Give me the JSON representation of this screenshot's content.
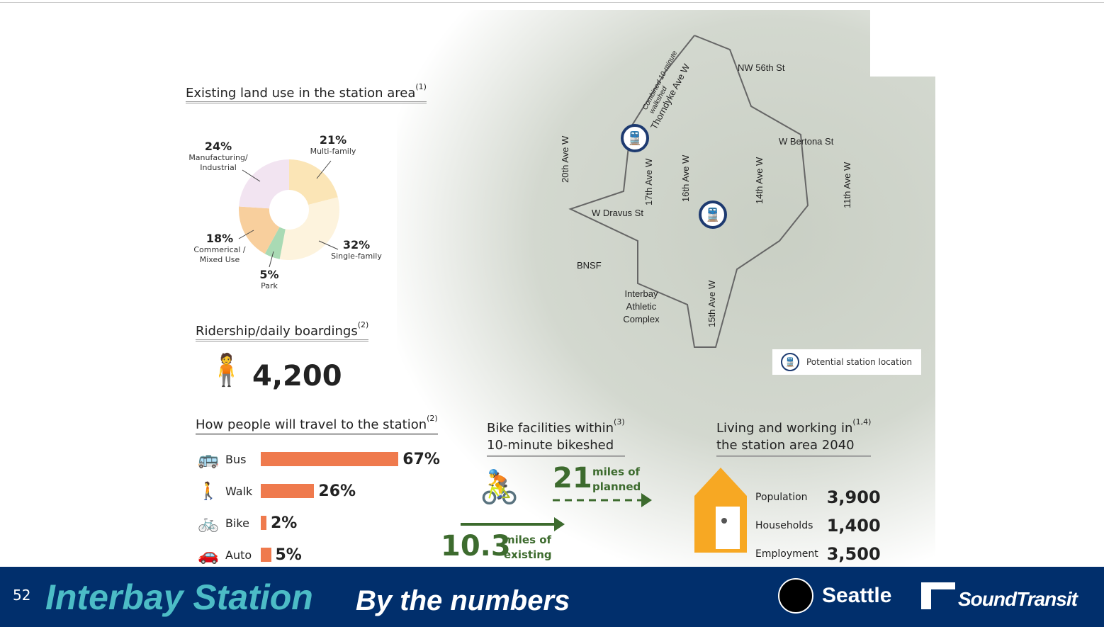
{
  "land_use": {
    "title": "Existing land use in the station area",
    "note": "(1)",
    "slices": [
      {
        "pct": "21%",
        "label": "Multi-family",
        "value": 21,
        "color": "#fbe5b6"
      },
      {
        "pct": "32%",
        "label": "Single-family",
        "value": 32,
        "color": "#fdf3dd"
      },
      {
        "pct": "5%",
        "label": "Park",
        "value": 5,
        "color": "#a9dab4"
      },
      {
        "pct": "18%",
        "label": "Commerical / Mixed Use",
        "value": 18,
        "color": "#f8cf9d"
      },
      {
        "pct": "24%",
        "label": "Manufacturing/ Industrial",
        "value": 24,
        "color": "#f2e4f1"
      }
    ]
  },
  "ridership": {
    "title": "Ridership/daily boardings",
    "note": "(2)",
    "value": "4,200"
  },
  "travel": {
    "title": "How people will travel to the station",
    "note": "(2)",
    "modes": [
      {
        "label": "Bus",
        "pct": "67%",
        "value": 67,
        "icon": "bus-icon",
        "glyph": "🚌"
      },
      {
        "label": "Walk",
        "pct": "26%",
        "value": 26,
        "icon": "walk-icon",
        "glyph": "🚶"
      },
      {
        "label": "Bike",
        "pct": "2%",
        "value": 2,
        "icon": "bike-icon",
        "glyph": "🚲"
      },
      {
        "label": "Auto",
        "pct": "5%",
        "value": 5,
        "icon": "car-icon",
        "glyph": "🚗"
      }
    ]
  },
  "bike": {
    "title1": "Bike facilities within",
    "title2": "10-minute bikeshed",
    "note": "(3)",
    "planned_num": "21",
    "planned_l1": "miles of",
    "planned_l2": "planned",
    "existing_num": "10.3",
    "existing_l1": "miles of",
    "existing_l2": "existing"
  },
  "living": {
    "title1": "Living and working in",
    "title2": "the station area 2040",
    "note": "(1,4)",
    "rows": [
      {
        "label": "Population",
        "value": "3,900"
      },
      {
        "label": "Households",
        "value": "1,400"
      },
      {
        "label": "Employment",
        "value": "3,500"
      }
    ]
  },
  "map": {
    "streets": {
      "nw56": "NW 56th St",
      "bertona": "W Bertona St",
      "dravus": "W Dravus St",
      "ave20": "20th Ave W",
      "ave17": "17th Ave W",
      "ave16": "16th Ave W",
      "ave15": "15th Ave W",
      "ave14": "14th Ave W",
      "ave11": "11th Ave W",
      "thorndyke": "Thorndyke Ave W",
      "walkshed": "Combined 10-minute walkshed",
      "bnsf": "BNSF",
      "complex": "Interbay Athletic Complex"
    },
    "legend": "Potential station location"
  },
  "footer": {
    "page": "52",
    "title": "Interbay Station",
    "subtitle": "By the numbers",
    "seattle": "Seattle",
    "soundtransit": "SoundTransit"
  }
}
